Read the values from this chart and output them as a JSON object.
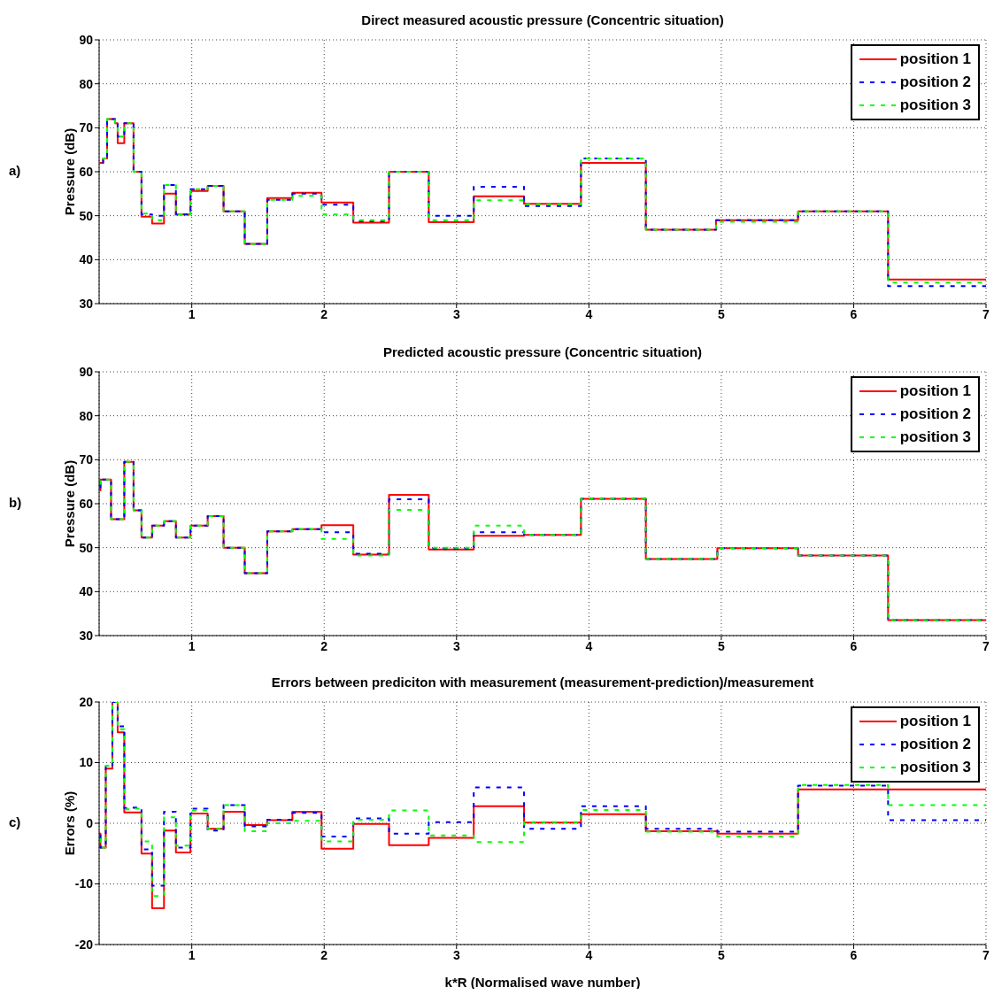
{
  "chart_data": [
    {
      "type": "step",
      "title": "Direct measured acoustic pressure (Concentric situation)",
      "ylabel": "Pressure (dB)",
      "annotations": [
        "a)"
      ],
      "x": [
        0.3,
        0.33,
        0.36,
        0.42,
        0.44,
        0.49,
        0.56,
        0.62,
        0.7,
        0.79,
        0.88,
        0.99,
        1.12,
        1.24,
        1.4,
        1.57,
        1.76,
        1.98,
        2.22,
        2.49,
        2.79,
        3.13,
        3.51,
        3.94,
        4.43,
        4.96,
        5.58,
        6.26,
        7
      ],
      "xlim": [
        0.3,
        7
      ],
      "xticks": [
        1,
        2,
        3,
        4,
        5,
        6,
        7
      ],
      "ylim": [
        30,
        90
      ],
      "yticks": [
        30,
        40,
        50,
        60,
        70,
        80,
        90
      ],
      "grid": true,
      "legend": "top right",
      "series": [
        {
          "name": "position 1",
          "color": "#ff0000",
          "line_style": "solid",
          "values": [
            62,
            63,
            72,
            71,
            66.5,
            71,
            60,
            49.8,
            48.2,
            55,
            50.3,
            55.6,
            56.8,
            51,
            43.6,
            54,
            55.2,
            53,
            48.4,
            60,
            48.5,
            54.4,
            52.7,
            62,
            46.8,
            49,
            51,
            35.5,
            35.5
          ]
        },
        {
          "name": "position 2",
          "color": "#0000ff",
          "line_style": "dashed",
          "values": [
            62,
            63,
            72,
            71,
            68,
            71,
            60,
            50.3,
            50,
            57,
            50.3,
            56,
            56.8,
            51,
            43.6,
            53.6,
            55,
            52.5,
            48.7,
            60,
            50,
            56.6,
            52.2,
            63,
            46.8,
            49,
            51,
            34,
            34
          ]
        },
        {
          "name": "position 3",
          "color": "#00ff00",
          "line_style": "dashed",
          "values": [
            62,
            63,
            72,
            71,
            68,
            71,
            60,
            50.5,
            49,
            57,
            50.3,
            56,
            56.8,
            51,
            43.6,
            53.6,
            54.5,
            50.3,
            49,
            60,
            49,
            53.5,
            52.6,
            63,
            46.8,
            48.6,
            51,
            34.8,
            34.8
          ]
        }
      ]
    },
    {
      "type": "step",
      "title": "Predicted acoustic pressure (Concentric situation)",
      "ylabel": "Pressure (dB)",
      "annotations": [
        "b)"
      ],
      "x": [
        0.3,
        0.31,
        0.39,
        0.49,
        0.56,
        0.62,
        0.7,
        0.79,
        0.88,
        0.99,
        1.12,
        1.24,
        1.4,
        1.57,
        1.76,
        1.98,
        2.22,
        2.49,
        2.79,
        3.13,
        3.51,
        3.94,
        4.43,
        4.97,
        5.58,
        6.26,
        7
      ],
      "xlim": [
        0.3,
        7
      ],
      "xticks": [
        1,
        2,
        3,
        4,
        5,
        6,
        7
      ],
      "ylim": [
        30,
        90
      ],
      "yticks": [
        30,
        40,
        50,
        60,
        70,
        80,
        90
      ],
      "grid": true,
      "legend": "top right",
      "series": [
        {
          "name": "position 1",
          "color": "#ff0000",
          "line_style": "solid",
          "values": [
            63,
            65.5,
            56.5,
            69.5,
            58.5,
            52.3,
            55,
            56,
            52.3,
            55,
            57.2,
            50,
            44.2,
            53.7,
            54.2,
            55.1,
            48.4,
            62,
            49.6,
            52.7,
            52.9,
            61.1,
            47.4,
            49.9,
            48.2,
            33.5,
            33.5
          ]
        },
        {
          "name": "position 2",
          "color": "#0000ff",
          "line_style": "dashed",
          "values": [
            63,
            65.5,
            56.5,
            69.5,
            58.5,
            52.3,
            55,
            56,
            52.3,
            55,
            57.2,
            50,
            44.2,
            53.7,
            54.2,
            53.5,
            48.6,
            61,
            49.8,
            53.5,
            52.9,
            61.1,
            47.4,
            49.9,
            48.2,
            33.5,
            33.5
          ]
        },
        {
          "name": "position 3",
          "color": "#00ff00",
          "line_style": "dashed",
          "values": [
            63,
            65.5,
            56.5,
            69.5,
            58.5,
            52.3,
            55,
            56,
            52.3,
            55,
            57.2,
            50,
            44.2,
            53.7,
            54.2,
            52,
            48.2,
            58.6,
            50,
            55,
            52.9,
            61.1,
            47.4,
            49.9,
            48.2,
            33.5,
            33.5
          ]
        }
      ]
    },
    {
      "type": "step",
      "title": "Errors between prediciton with measurement (measurement-prediction)/measurement",
      "ylabel": "Errors (%)",
      "xlabel": "k*R (Normalised wave number)",
      "annotations": [
        "c)"
      ],
      "x": [
        0.3,
        0.31,
        0.35,
        0.4,
        0.44,
        0.49,
        0.56,
        0.62,
        0.7,
        0.79,
        0.88,
        0.99,
        1.12,
        1.24,
        1.4,
        1.57,
        1.76,
        1.98,
        2.22,
        2.49,
        2.79,
        3.13,
        3.51,
        3.94,
        4.43,
        4.97,
        5.58,
        6.26,
        7
      ],
      "xlim": [
        0.3,
        7
      ],
      "xticks": [
        1,
        2,
        3,
        4,
        5,
        6,
        7
      ],
      "ylim": [
        -20,
        20
      ],
      "yticks": [
        -20,
        -10,
        0,
        10,
        20
      ],
      "grid": true,
      "legend": "top right",
      "series": [
        {
          "name": "position 1",
          "color": "#ff0000",
          "line_style": "solid",
          "values": [
            -1.7,
            -4,
            9,
            20,
            15,
            1.8,
            1.8,
            -5,
            -14,
            -1.2,
            -4.8,
            1.6,
            -0.9,
            1.9,
            -0.3,
            0.5,
            1.9,
            -4.2,
            -0.1,
            -3.6,
            -2.4,
            2.8,
            0.1,
            1.5,
            -1.3,
            -1.7,
            5.6,
            5.6,
            5.6
          ]
        },
        {
          "name": "position 2",
          "color": "#0000ff",
          "line_style": "dashed",
          "values": [
            -1.5,
            -4,
            9.5,
            20,
            16,
            2.5,
            2.6,
            -4.3,
            -10.3,
            1.9,
            -4,
            2.4,
            -1.2,
            3,
            -0.5,
            0.6,
            1.7,
            -2.2,
            0.8,
            -1.7,
            0.2,
            5.9,
            -0.9,
            2.8,
            -0.9,
            -1.4,
            6.2,
            0.5,
            0.5
          ]
        },
        {
          "name": "position 3",
          "color": "#00ff00",
          "line_style": "dashed",
          "values": [
            -1.5,
            -4,
            9.5,
            20,
            15.5,
            2.3,
            2.4,
            -3,
            -12,
            1,
            -3.7,
            2.1,
            -0.9,
            3,
            -1.3,
            0,
            0.4,
            -3,
            0.6,
            2.1,
            -2,
            -3.1,
            0.2,
            2.2,
            -1.4,
            -2.2,
            6.3,
            3,
            3
          ]
        }
      ]
    }
  ]
}
